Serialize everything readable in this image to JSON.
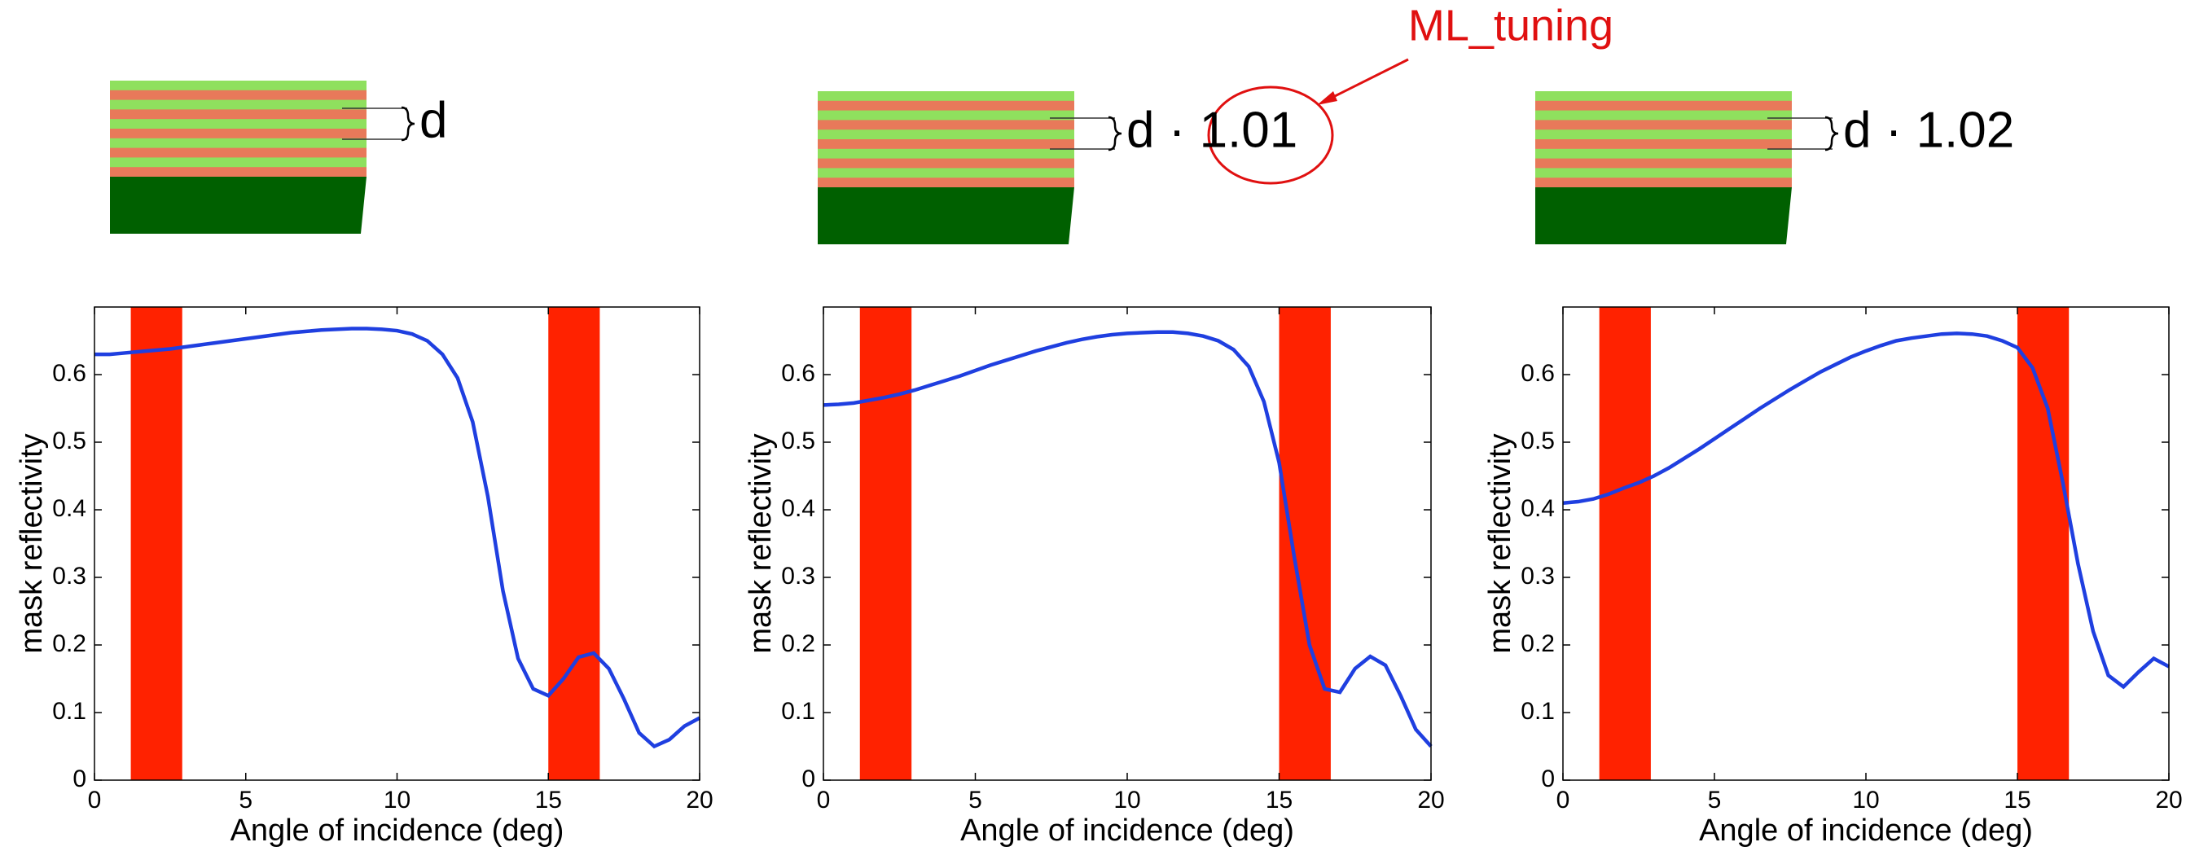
{
  "chart_data": [
    {
      "type": "line",
      "annotation": "d",
      "x": [
        0,
        0.5,
        1,
        1.5,
        2,
        2.5,
        3,
        3.5,
        4,
        4.5,
        5,
        5.5,
        6,
        6.5,
        7,
        7.5,
        8,
        8.5,
        9,
        9.5,
        10,
        10.5,
        11,
        11.5,
        12,
        12.5,
        13,
        13.5,
        14,
        14.5,
        15,
        15.5,
        16,
        16.5,
        17,
        17.5,
        18,
        18.5,
        19,
        19.5,
        20
      ],
      "series": [
        {
          "color": "#1f3fe0",
          "values": [
            0.63,
            0.63,
            0.632,
            0.634,
            0.636,
            0.638,
            0.641,
            0.644,
            0.647,
            0.65,
            0.653,
            0.656,
            0.659,
            0.662,
            0.664,
            0.666,
            0.667,
            0.668,
            0.668,
            0.667,
            0.665,
            0.66,
            0.65,
            0.63,
            0.595,
            0.53,
            0.42,
            0.28,
            0.18,
            0.135,
            0.125,
            0.15,
            0.182,
            0.188,
            0.165,
            0.12,
            0.07,
            0.05,
            0.06,
            0.08,
            0.092
          ]
        }
      ],
      "bands": [
        [
          1.2,
          2.9
        ],
        [
          15,
          16.7
        ]
      ],
      "band_color": "#ff2200",
      "xlim": [
        0,
        20
      ],
      "xticks": [
        0,
        5,
        10,
        15,
        20
      ],
      "ylim": [
        0,
        0.7
      ],
      "yticks": [
        0,
        0.1,
        0.2,
        0.3,
        0.4,
        0.5,
        0.6
      ],
      "xlabel": "Angle of incidence (deg)",
      "ylabel": "mask reflectivity"
    },
    {
      "type": "line",
      "annotation": "d · 1.01",
      "callout": "ML_tuning",
      "x": [
        0,
        0.5,
        1,
        1.5,
        2,
        2.5,
        3,
        3.5,
        4,
        4.5,
        5,
        5.5,
        6,
        6.5,
        7,
        7.5,
        8,
        8.5,
        9,
        9.5,
        10,
        10.5,
        11,
        11.5,
        12,
        12.5,
        13,
        13.5,
        14,
        14.5,
        15,
        15.5,
        16,
        16.5,
        17,
        17.5,
        18,
        18.5,
        19,
        19.5,
        20
      ],
      "series": [
        {
          "color": "#1f3fe0",
          "values": [
            0.555,
            0.556,
            0.558,
            0.562,
            0.566,
            0.571,
            0.577,
            0.584,
            0.591,
            0.598,
            0.606,
            0.614,
            0.621,
            0.628,
            0.635,
            0.641,
            0.647,
            0.652,
            0.656,
            0.659,
            0.661,
            0.662,
            0.663,
            0.663,
            0.661,
            0.657,
            0.65,
            0.637,
            0.612,
            0.56,
            0.47,
            0.33,
            0.2,
            0.135,
            0.13,
            0.165,
            0.183,
            0.17,
            0.125,
            0.075,
            0.05
          ]
        }
      ],
      "bands": [
        [
          1.2,
          2.9
        ],
        [
          15,
          16.7
        ]
      ],
      "band_color": "#ff2200",
      "xlim": [
        0,
        20
      ],
      "xticks": [
        0,
        5,
        10,
        15,
        20
      ],
      "ylim": [
        0,
        0.7
      ],
      "yticks": [
        0,
        0.1,
        0.2,
        0.3,
        0.4,
        0.5,
        0.6
      ],
      "xlabel": "Angle of incidence (deg)",
      "ylabel": "mask reflectivity"
    },
    {
      "type": "line",
      "annotation": "d · 1.02",
      "x": [
        0,
        0.5,
        1,
        1.5,
        2,
        2.5,
        3,
        3.5,
        4,
        4.5,
        5,
        5.5,
        6,
        6.5,
        7,
        7.5,
        8,
        8.5,
        9,
        9.5,
        10,
        10.5,
        11,
        11.5,
        12,
        12.5,
        13,
        13.5,
        14,
        14.5,
        15,
        15.5,
        16,
        16.5,
        17,
        17.5,
        18,
        18.5,
        19,
        19.5,
        20
      ],
      "series": [
        {
          "color": "#1f3fe0",
          "values": [
            0.41,
            0.412,
            0.416,
            0.423,
            0.432,
            0.44,
            0.45,
            0.462,
            0.476,
            0.49,
            0.505,
            0.52,
            0.535,
            0.55,
            0.564,
            0.578,
            0.591,
            0.604,
            0.615,
            0.626,
            0.635,
            0.643,
            0.65,
            0.654,
            0.657,
            0.66,
            0.661,
            0.66,
            0.657,
            0.65,
            0.64,
            0.61,
            0.55,
            0.44,
            0.32,
            0.22,
            0.155,
            0.138,
            0.16,
            0.18,
            0.168
          ]
        }
      ],
      "bands": [
        [
          1.2,
          2.9
        ],
        [
          15,
          16.7
        ]
      ],
      "band_color": "#ff2200",
      "xlim": [
        0,
        20
      ],
      "xticks": [
        0,
        5,
        10,
        15,
        20
      ],
      "ylim": [
        0,
        0.7
      ],
      "yticks": [
        0,
        0.1,
        0.2,
        0.3,
        0.4,
        0.5,
        0.6
      ],
      "xlabel": "Angle of incidence (deg)",
      "ylabel": "mask reflectivity"
    }
  ]
}
